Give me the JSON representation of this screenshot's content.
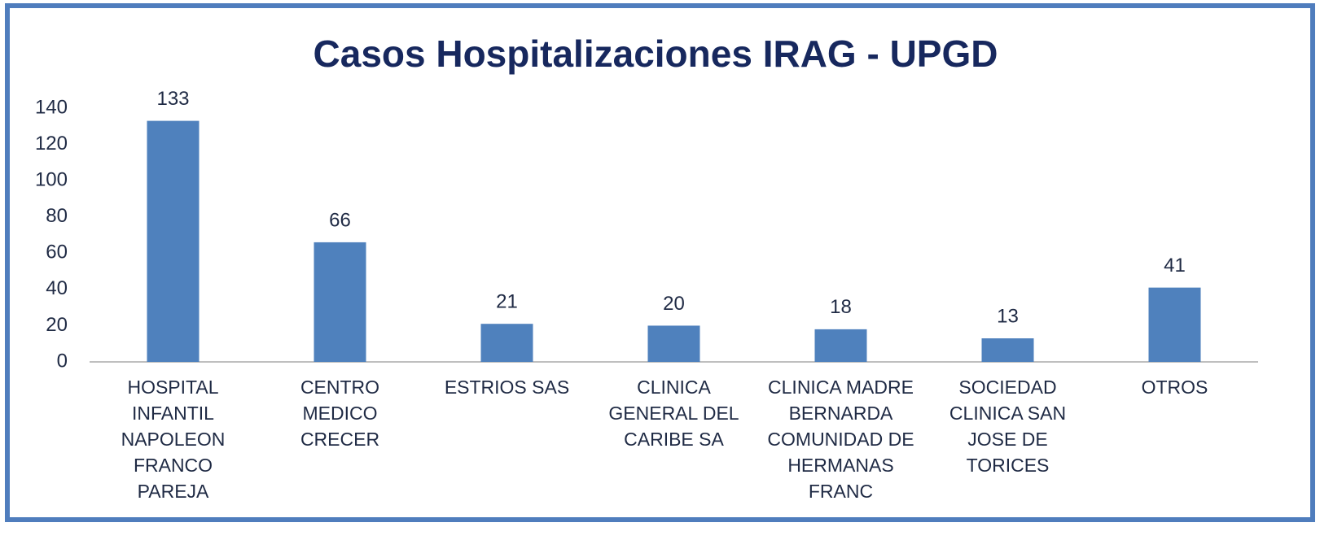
{
  "chart_data": {
    "type": "bar",
    "title": "Casos Hospitalizaciones IRAG - UPGD",
    "categories": [
      "HOSPITAL\nINFANTIL\nNAPOLEON\nFRANCO\nPAREJA",
      "CENTRO\nMEDICO\nCRECER",
      "ESTRIOS SAS",
      "CLINICA\nGENERAL DEL\nCARIBE SA",
      "CLINICA MADRE\nBERNARDA\nCOMUNIDAD DE\nHERMANAS\nFRANC",
      "SOCIEDAD\nCLINICA SAN\nJOSE DE\nTORICES",
      "OTROS"
    ],
    "values": [
      133,
      66,
      21,
      20,
      18,
      13,
      41
    ],
    "color": "#4f81bd",
    "ylim": [
      0,
      140
    ],
    "yticks": [
      0,
      20,
      40,
      60,
      80,
      100,
      120,
      140
    ],
    "grid": false
  }
}
